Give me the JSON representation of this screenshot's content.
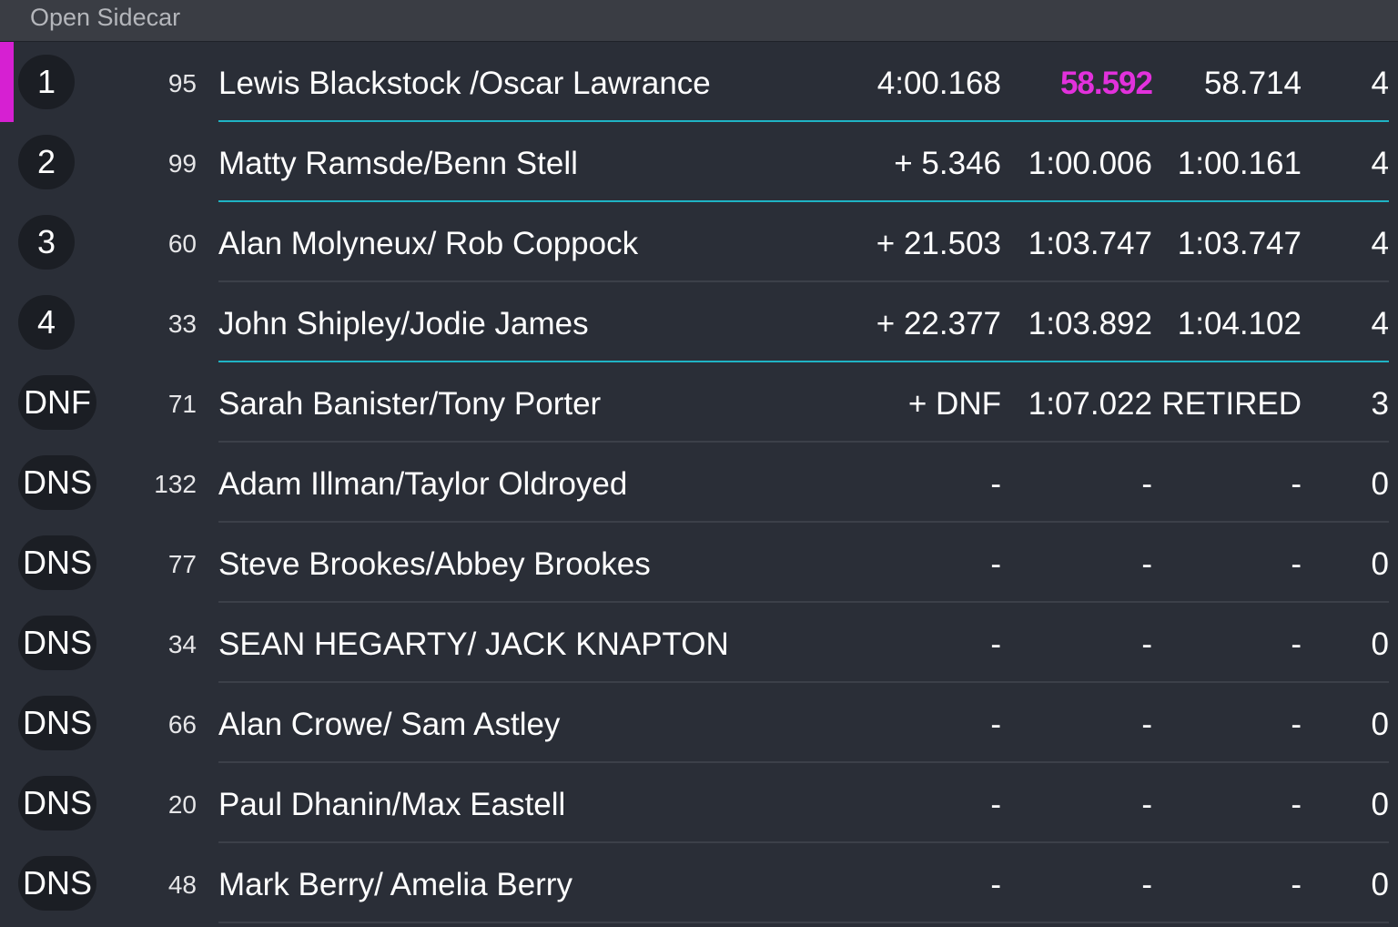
{
  "header": {
    "title": "Open Sidecar"
  },
  "colors": {
    "accent": "#d620d2",
    "divider_highlight": "#1fb3c4",
    "background": "#2a2e37"
  },
  "rows": [
    {
      "pos": "1",
      "car": "95",
      "name": "Lewis Blackstock /Oscar Lawrance",
      "gap": "4:00.168",
      "best": "58.592",
      "last": "58.714",
      "laps": "4",
      "best_highlight": true,
      "leader": true,
      "divider": "cyan"
    },
    {
      "pos": "2",
      "car": "99",
      "name": "Matty Ramsde/Benn Stell",
      "gap": "+ 5.346",
      "best": "1:00.006",
      "last": "1:00.161",
      "laps": "4",
      "divider": "cyan"
    },
    {
      "pos": "3",
      "car": "60",
      "name": "Alan Molyneux/ Rob Coppock",
      "gap": "+ 21.503",
      "best": "1:03.747",
      "last": "1:03.747",
      "laps": "4",
      "divider": "gray"
    },
    {
      "pos": "4",
      "car": "33",
      "name": "John Shipley/Jodie James",
      "gap": "+ 22.377",
      "best": "1:03.892",
      "last": "1:04.102",
      "laps": "4",
      "divider": "cyan"
    },
    {
      "pos": "DNF",
      "car": "71",
      "name": "Sarah Banister/Tony Porter",
      "gap": "+ DNF",
      "best": "1:07.022",
      "last": "RETIRED",
      "laps": "3",
      "divider": "gray"
    },
    {
      "pos": "DNS",
      "car": "132",
      "name": "Adam Illman/Taylor Oldroyed",
      "gap": "-",
      "best": "-",
      "last": "-",
      "laps": "0",
      "divider": "gray"
    },
    {
      "pos": "DNS",
      "car": "77",
      "name": "Steve Brookes/Abbey Brookes",
      "gap": "-",
      "best": "-",
      "last": "-",
      "laps": "0",
      "divider": "gray"
    },
    {
      "pos": "DNS",
      "car": "34",
      "name": "SEAN HEGARTY/ JACK KNAPTON",
      "gap": "-",
      "best": "-",
      "last": "-",
      "laps": "0",
      "divider": "gray"
    },
    {
      "pos": "DNS",
      "car": "66",
      "name": "Alan Crowe/ Sam Astley",
      "gap": "-",
      "best": "-",
      "last": "-",
      "laps": "0",
      "divider": "gray"
    },
    {
      "pos": "DNS",
      "car": "20",
      "name": "Paul Dhanin/Max Eastell",
      "gap": "-",
      "best": "-",
      "last": "-",
      "laps": "0",
      "divider": "gray"
    },
    {
      "pos": "DNS",
      "car": "48",
      "name": "Mark Berry/ Amelia Berry",
      "gap": "-",
      "best": "-",
      "last": "-",
      "laps": "0",
      "divider": "gray"
    }
  ]
}
